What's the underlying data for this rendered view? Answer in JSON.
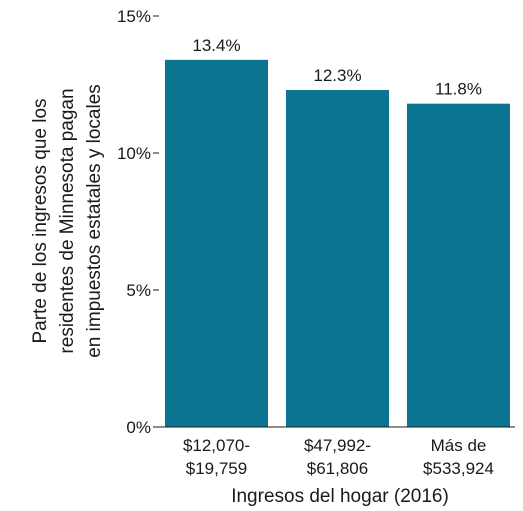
{
  "chart_data": {
    "type": "bar",
    "categories": [
      [
        "$12,070-",
        "$19,759"
      ],
      [
        "$47,992-",
        "$61,806"
      ],
      [
        "Más de",
        "$533,924"
      ]
    ],
    "values": [
      13.4,
      12.3,
      11.8
    ],
    "data_labels": [
      "13.4%",
      "12.3%",
      "11.8%"
    ],
    "xlabel": "Ingresos del hogar (2016)",
    "ylabel": [
      "Parte de los ingresos que los",
      "residentes de Minnesota pagan",
      "en impuestos estatales y locales"
    ],
    "ylim": [
      0,
      15
    ],
    "yticks": [
      0,
      5,
      10,
      15
    ],
    "ytick_labels": [
      "0%",
      "5%",
      "10%",
      "15%"
    ],
    "bar_color": "#0b7490",
    "grid": false
  }
}
